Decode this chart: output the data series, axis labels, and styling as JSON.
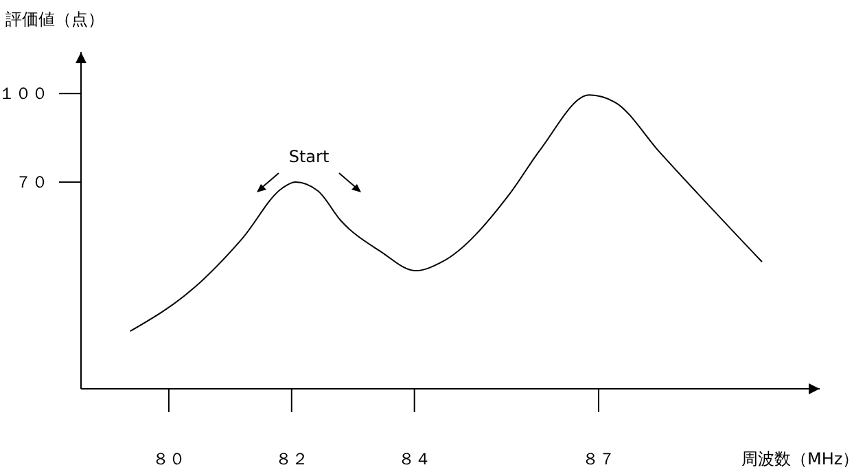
{
  "chart_data": {
    "type": "line",
    "ylabel": "評価値（点）",
    "xlabel": "周波数（MHz）",
    "x": [
      79.37,
      80.4,
      81.2,
      81.85,
      82.06,
      82.43,
      82.8,
      83.45,
      84.02,
      84.45,
      85.55,
      86.05,
      86.85,
      87.27,
      88.0,
      89.66
    ],
    "series": [
      {
        "color": "#000000",
        "values": [
          19.5,
          34,
          51,
          68,
          70,
          67,
          57,
          46.5,
          40,
          43,
          66,
          81,
          99.5,
          97,
          80,
          43
        ]
      }
    ],
    "xlim": [
      78.57,
      90.6
    ],
    "ylim": [
      0,
      114
    ],
    "xticks": [
      {
        "value": 80,
        "label": "８０"
      },
      {
        "value": 82,
        "label": "８２"
      },
      {
        "value": 84,
        "label": "８４"
      },
      {
        "value": 87,
        "label": "８７"
      }
    ],
    "yticks": [
      {
        "value": 70,
        "label": "７０"
      },
      {
        "value": 100,
        "label": "１００"
      }
    ],
    "annotations": [
      "Start"
    ],
    "grid": false,
    "legend": false,
    "marker": "none",
    "line_style": "solid"
  }
}
